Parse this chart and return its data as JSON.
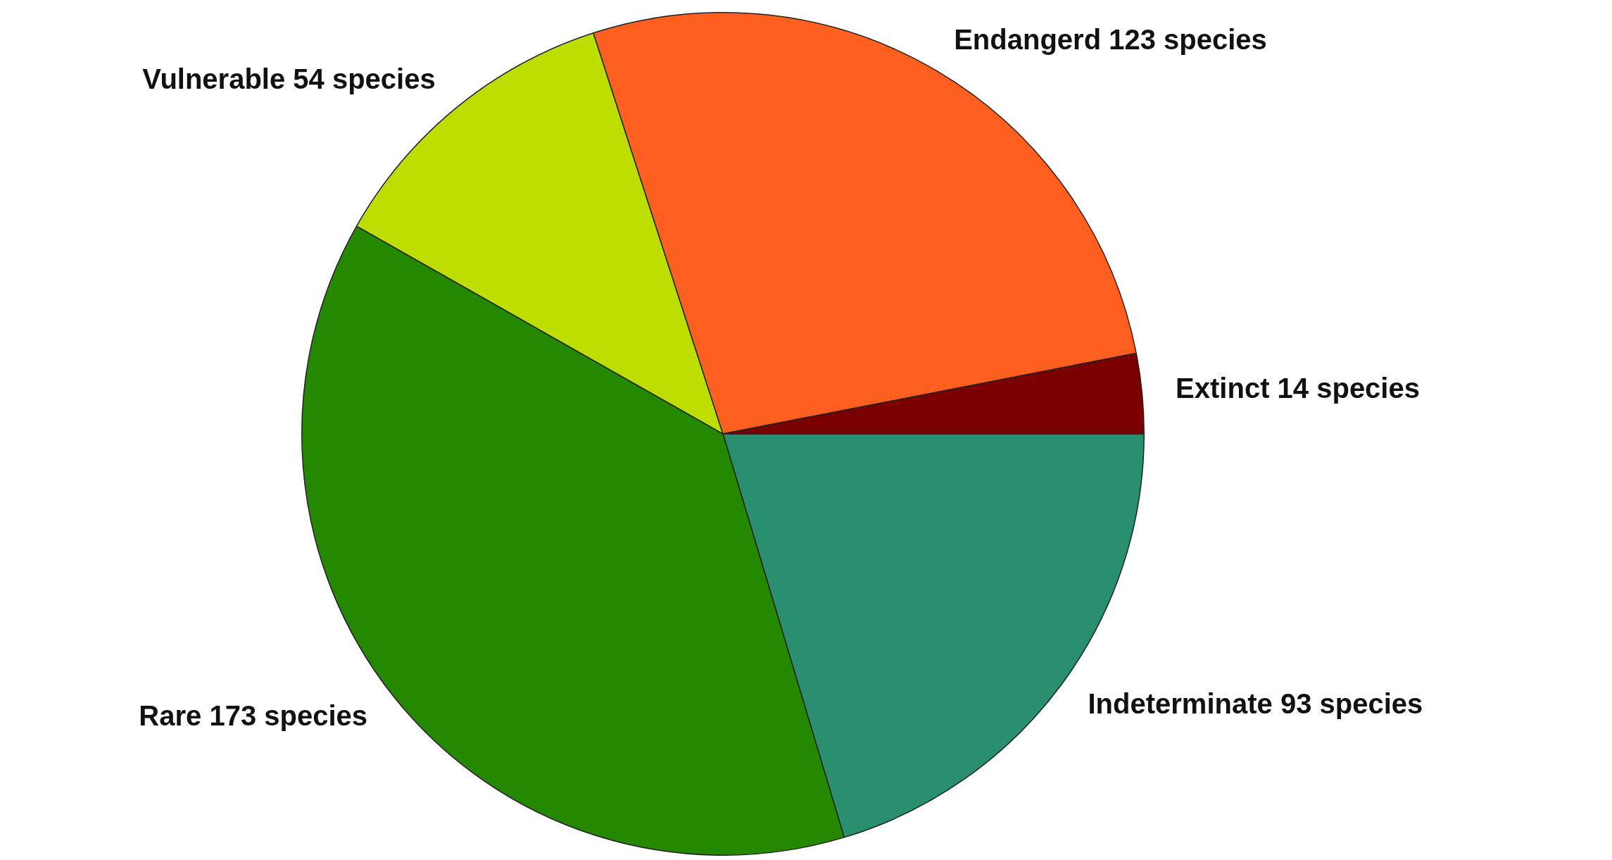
{
  "chart_data": {
    "type": "pie",
    "categories": [
      "Extinct 14 species",
      "Endangerd 123 species",
      "Vulnerable 54 species",
      "Rare 173 species",
      "Indeterminate 93 species"
    ],
    "values": [
      14,
      123,
      54,
      173,
      93
    ],
    "colors": [
      "#7a0000",
      "#ff5f1f",
      "#bedd00",
      "#248800",
      "#2a8f6e"
    ],
    "legend": false
  }
}
